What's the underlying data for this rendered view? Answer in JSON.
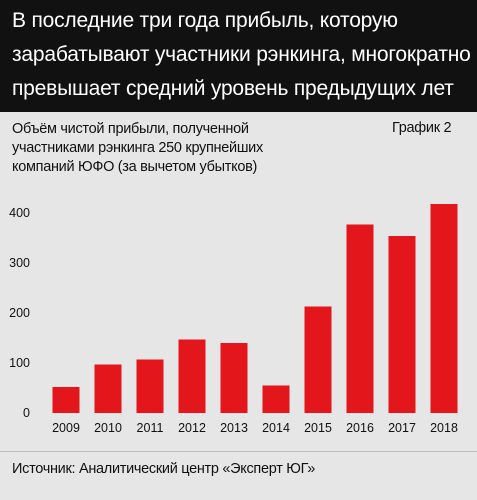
{
  "header": {
    "lines": [
      "В последние три года прибыль, которую",
      "зарабатывают участники рэнкинга, многократно",
      "превышает средний уровень предыдущих лет"
    ]
  },
  "subtitle_lines": [
    "Объём чистой прибыли, полученной",
    "участниками рэнкинга 250 крупнейших",
    "компаний ЮФО (за вычетом убытков)"
  ],
  "chart_label": "График 2",
  "source": "Источник: Аналитический центр «Эксперт ЮГ»",
  "colors": {
    "bar": "#e3161b",
    "header_bg": "#111111",
    "background": "#e6e6e6"
  },
  "chart_data": {
    "type": "bar",
    "categories": [
      "2009",
      "2010",
      "2011",
      "2012",
      "2013",
      "2014",
      "2015",
      "2016",
      "2017",
      "2018"
    ],
    "values": [
      52,
      97,
      107,
      147,
      140,
      55,
      213,
      377,
      354,
      418
    ],
    "yticks": [
      0,
      100,
      200,
      300,
      400
    ],
    "ylim": [
      0,
      430
    ],
    "grid": false
  }
}
